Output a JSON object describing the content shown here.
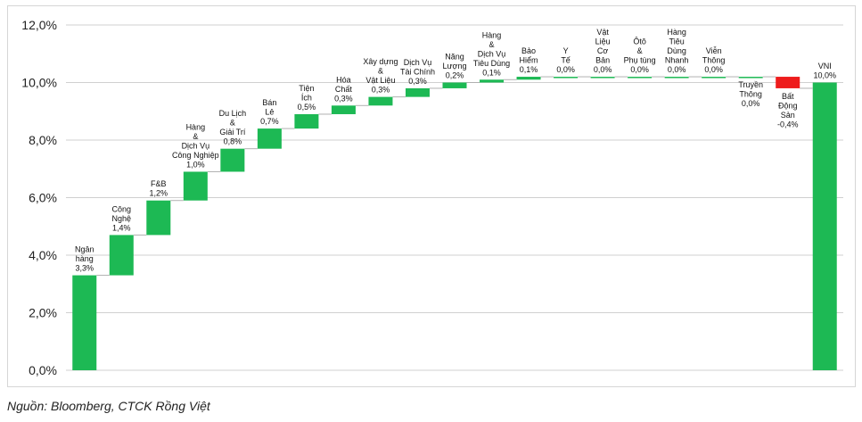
{
  "source_note": "Nguồn: Bloomberg, CTCK Rồng Việt",
  "colors": {
    "positive": "#1db954",
    "negative": "#ee1c1c",
    "grid": "#d0d0d0",
    "connector": "#b0b0b0"
  },
  "chart_data": {
    "type": "bar",
    "subtype": "waterfall",
    "title": "",
    "xlabel": "",
    "ylabel": "",
    "ylim": [
      0,
      12
    ],
    "y_ticks": [
      "0,0%",
      "2,0%",
      "4,0%",
      "6,0%",
      "8,0%",
      "10,0%",
      "12,0%"
    ],
    "grid": "horizontal",
    "categories": [
      "Ngân hàng",
      "Công Nghệ",
      "F&B",
      "Hàng & Dịch Vụ Công Nghiệp",
      "Du Lịch & Giải Trí",
      "Bán Lẻ",
      "Tiện Ích",
      "Hóa Chất",
      "Xây dựng & Vật Liệu",
      "Dịch Vụ Tài Chính",
      "Năng Lượng",
      "Hàng & Dịch Vụ Tiêu Dùng",
      "Bảo Hiểm",
      "Y Tế",
      "Vật Liệu Cơ Bản",
      "Ôtô & Phụ tùng",
      "Hàng Tiêu Dùng Nhanh",
      "Viễn Thông",
      "Truyền Thông",
      "Bất Động Sản",
      "VNI"
    ],
    "values": [
      3.3,
      1.4,
      1.2,
      1.0,
      0.8,
      0.7,
      0.5,
      0.3,
      0.3,
      0.3,
      0.2,
      0.1,
      0.1,
      0.0,
      0.0,
      0.0,
      0.0,
      0.0,
      0.0,
      -0.4,
      10.0
    ],
    "label_lines": [
      [
        "Ngân",
        "hàng"
      ],
      [
        "Công",
        "Nghệ"
      ],
      [
        "F&B"
      ],
      [
        "Hàng",
        "&",
        "Dịch Vụ",
        "Công Nghiệp"
      ],
      [
        "Du Lịch",
        "&",
        "Giải Trí"
      ],
      [
        "Bán",
        "Lẻ"
      ],
      [
        "Tiện",
        "Ích"
      ],
      [
        "Hóa",
        "Chất"
      ],
      [
        "Xây dựng",
        "&",
        "Vật Liệu"
      ],
      [
        "Dịch Vụ",
        "Tài Chính"
      ],
      [
        "Năng",
        "Lượng"
      ],
      [
        "Hàng",
        "&",
        "Dịch Vụ",
        "Tiêu Dùng"
      ],
      [
        "Bảo",
        "Hiểm"
      ],
      [
        "Y",
        "Tế"
      ],
      [
        "Vật",
        "Liệu",
        "Cơ",
        "Bản"
      ],
      [
        "Ôtô",
        "&",
        "Phụ tùng"
      ],
      [
        "Hàng",
        "Tiêu",
        "Dùng",
        "Nhanh"
      ],
      [
        "Viễn",
        "Thông"
      ],
      [
        "Truyền",
        "Thông"
      ],
      [
        "Bất",
        "Động",
        "Sản"
      ],
      [
        "VNI"
      ]
    ],
    "value_labels": [
      "3,3%",
      "1,4%",
      "1,2%",
      "1,0%",
      "0,8%",
      "0,7%",
      "0,5%",
      "0,3%",
      "0,3%",
      "0,3%",
      "0,2%",
      "0,1%",
      "0,1%",
      "0,0%",
      "0,0%",
      "0,0%",
      "0,0%",
      "0,0%",
      "0,0%",
      "-0,4%",
      "10,0%"
    ],
    "label_position": [
      "above",
      "above",
      "above",
      "above",
      "above",
      "above",
      "above",
      "above",
      "above",
      "above",
      "above",
      "above",
      "above",
      "above",
      "above",
      "above",
      "above",
      "above",
      "below",
      "below",
      "above"
    ],
    "total_index": 20
  }
}
